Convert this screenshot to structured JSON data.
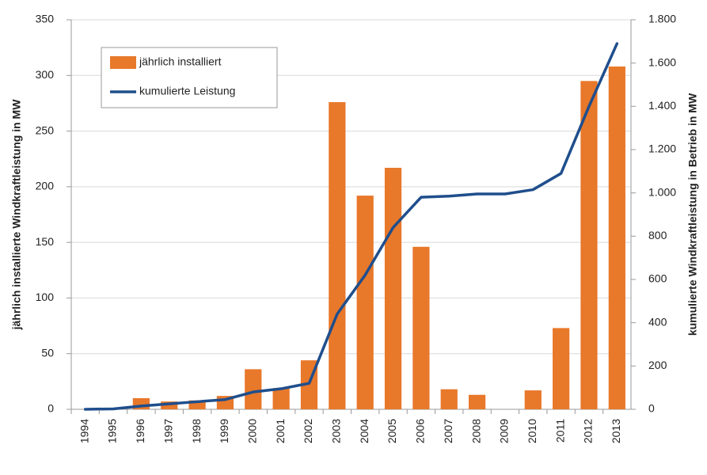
{
  "chart_data": {
    "type": "bar",
    "categories": [
      "1994",
      "1995",
      "1996",
      "1997",
      "1998",
      "1999",
      "2000",
      "2001",
      "2002",
      "2003",
      "2004",
      "2005",
      "2006",
      "2007",
      "2008",
      "2009",
      "2010",
      "2011",
      "2012",
      "2013"
    ],
    "series": [
      {
        "name": "jährlich installiert",
        "type": "bar",
        "color": "#e8782a",
        "values": [
          0,
          0,
          10,
          7,
          8,
          12,
          36,
          19,
          44,
          276,
          192,
          217,
          146,
          18,
          13,
          0,
          17,
          73,
          295,
          308
        ]
      },
      {
        "name": "kumulierte Leistung",
        "type": "line",
        "axis": "y2",
        "color": "#1f4e8c",
        "values": [
          0,
          2,
          15,
          25,
          35,
          45,
          80,
          95,
          120,
          440,
          620,
          840,
          980,
          985,
          995,
          995,
          1015,
          1090,
          1400,
          1690
        ]
      }
    ],
    "ylabel": "jährlich installierte Windkraftleistung in MW",
    "y2label": "kumulierte Windkraftleistung in Betrieb in MW",
    "ylim": [
      0,
      350
    ],
    "yticks": [
      0,
      50,
      100,
      150,
      200,
      250,
      300,
      350
    ],
    "y2lim": [
      0,
      1800
    ],
    "y2ticks": [
      0,
      200,
      400,
      600,
      800,
      {
        "value": 1000,
        "label": "1.000"
      },
      {
        "value": 1200,
        "label": "1.200"
      },
      {
        "value": 1400,
        "label": "1.400"
      },
      {
        "value": 1600,
        "label": "1.600"
      },
      {
        "value": 1800,
        "label": "1.800"
      }
    ],
    "grid": true,
    "legend": "upper left"
  }
}
